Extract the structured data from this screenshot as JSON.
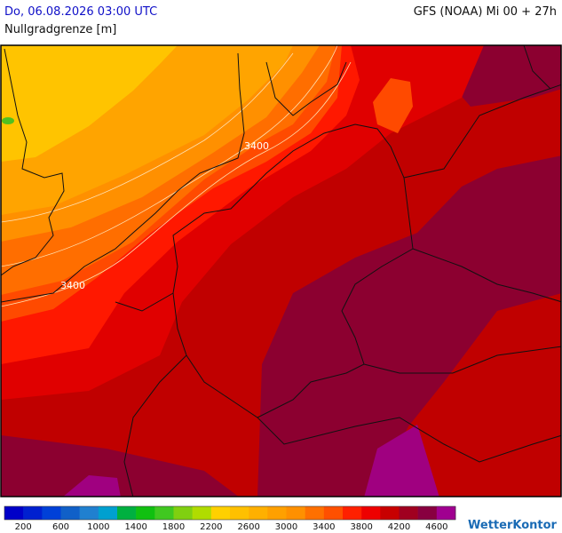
{
  "header": {
    "valid_time": "Do, 06.08.2026 03:00 UTC",
    "model_run": "GFS (NOAA) Mi 00 + 27h",
    "parameter": "Nullgradgrenze [m]"
  },
  "map": {
    "contour_labels": [
      "3400",
      "3400"
    ]
  },
  "legend": {
    "colors": [
      "#0000c8",
      "#0020d0",
      "#0040d8",
      "#1060c8",
      "#2080d0",
      "#00a0d0",
      "#00b040",
      "#10c010",
      "#40c820",
      "#80d010",
      "#b0dc00",
      "#ffd000",
      "#ffc000",
      "#ffb000",
      "#ffa000",
      "#ff9000",
      "#ff7000",
      "#ff5000",
      "#ff2000",
      "#ee0000",
      "#c80000",
      "#a00020",
      "#880040",
      "#a00090"
    ],
    "labels": [
      200,
      600,
      1000,
      1400,
      1800,
      2200,
      2600,
      3000,
      3400,
      3800,
      4200,
      4600
    ]
  },
  "logo": "WetterKontor"
}
